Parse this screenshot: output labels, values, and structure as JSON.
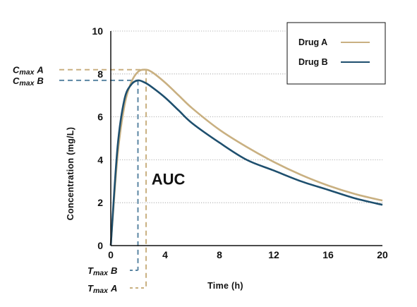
{
  "chart_data": {
    "type": "line",
    "title": "",
    "xlabel": "Time (h)",
    "ylabel": "Concentration (mg/L)",
    "xlim": [
      0,
      20
    ],
    "ylim": [
      0,
      10
    ],
    "x_ticks": [
      0,
      4,
      8,
      12,
      16,
      20
    ],
    "y_ticks": [
      0,
      2,
      4,
      6,
      8,
      10
    ],
    "grid": "horizontal dotted",
    "legend": "top-right",
    "series": [
      {
        "name": "Drug A",
        "color": "#c9b081",
        "x": [
          0,
          0.5,
          1,
          1.5,
          2,
          2.5,
          3,
          4,
          5,
          6,
          8,
          10,
          12,
          14,
          16,
          18,
          20
        ],
        "y": [
          0,
          4.2,
          6.5,
          7.6,
          8.1,
          8.2,
          8.1,
          7.6,
          7.0,
          6.4,
          5.4,
          4.6,
          3.9,
          3.3,
          2.8,
          2.4,
          2.1
        ]
      },
      {
        "name": "Drug B",
        "color": "#1e4f6e",
        "x": [
          0,
          0.5,
          1,
          1.5,
          2,
          2.5,
          3,
          4,
          5,
          6,
          8,
          10,
          12,
          14,
          16,
          18,
          20
        ],
        "y": [
          0,
          4.6,
          6.8,
          7.5,
          7.7,
          7.6,
          7.4,
          6.9,
          6.3,
          5.7,
          4.8,
          4.0,
          3.5,
          3.0,
          2.6,
          2.2,
          1.9
        ]
      }
    ],
    "annotations": [
      {
        "id": "cmax_a",
        "main": "C",
        "sub": "max",
        "suffix": "A",
        "value": 8.2,
        "axis": "y",
        "color": "#c9b081"
      },
      {
        "id": "cmax_b",
        "main": "C",
        "sub": "max",
        "suffix": "B",
        "value": 7.7,
        "axis": "y",
        "color": "#5b86a3"
      },
      {
        "id": "tmax_a",
        "main": "T",
        "sub": "max",
        "suffix": "A",
        "value": 2.6,
        "axis": "x",
        "color": "#c9b081"
      },
      {
        "id": "tmax_b",
        "main": "T",
        "sub": "max",
        "suffix": "B",
        "value": 2.0,
        "axis": "x",
        "color": "#5b86a3"
      }
    ],
    "region_label": "AUC"
  }
}
